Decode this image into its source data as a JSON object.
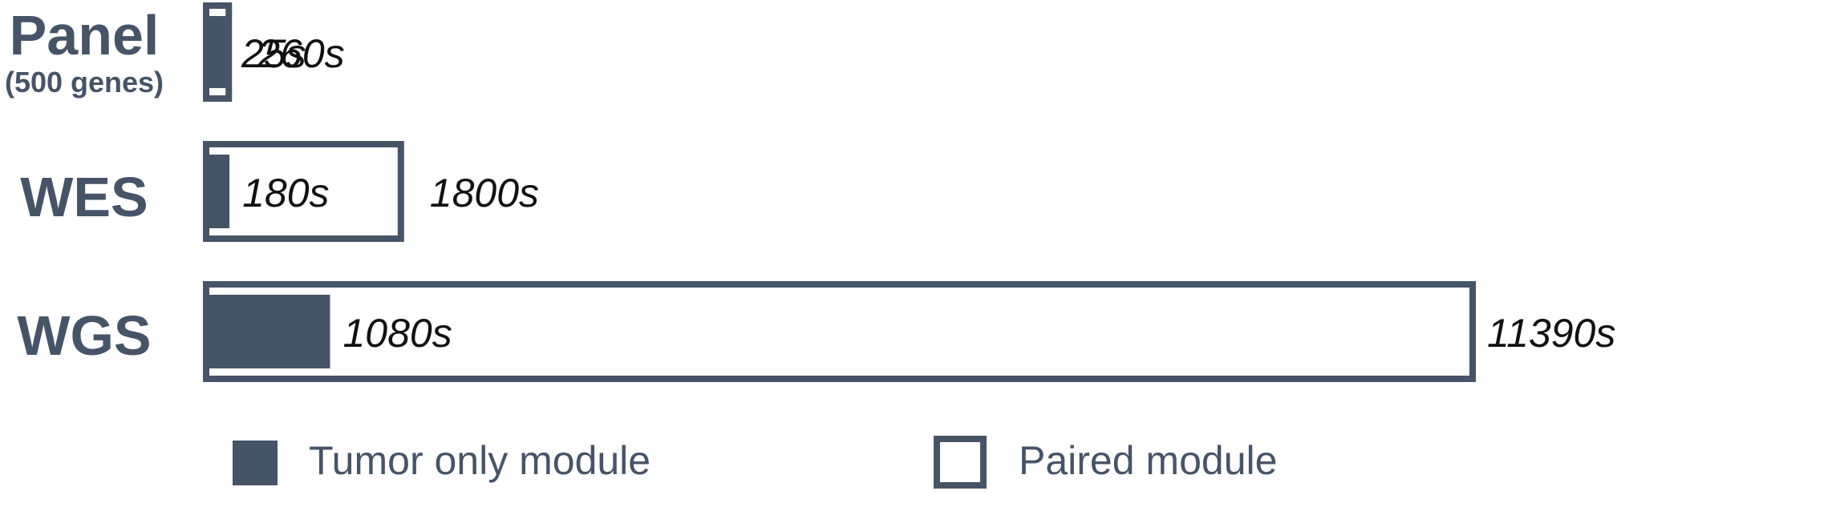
{
  "colors": {
    "bar": "#465468",
    "background": "#ffffff",
    "value_text": "#111111"
  },
  "chart_data": {
    "type": "bar",
    "orientation": "horizontal",
    "categories": [
      "Panel",
      "WES",
      "WGS"
    ],
    "category_sublabels": [
      "(500 genes)",
      "",
      ""
    ],
    "series": [
      {
        "name": "Tumor only module",
        "style": "filled",
        "values": [
          25,
          180,
          1080
        ],
        "value_labels": [
          "25s",
          "180s",
          "1080s"
        ]
      },
      {
        "name": "Paired module",
        "style": "outlined",
        "values": [
          260,
          1800,
          11390
        ],
        "value_labels": [
          "260s",
          "1800s",
          "11390s"
        ]
      }
    ],
    "title": "",
    "xlabel": "",
    "ylabel": "",
    "grid": false,
    "axes_visible": false,
    "legend": {
      "position": "bottom",
      "items": [
        {
          "label": "Tumor only module",
          "style": "filled"
        },
        {
          "label": "Paired module",
          "style": "outlined"
        }
      ]
    }
  }
}
